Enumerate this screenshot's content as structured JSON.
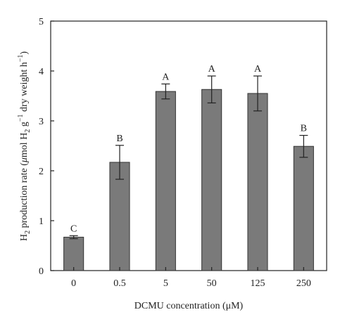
{
  "chart_data": {
    "type": "bar",
    "categories": [
      "0",
      "0.5",
      "5",
      "50",
      "125",
      "250"
    ],
    "values": [
      0.67,
      2.17,
      3.59,
      3.63,
      3.55,
      2.49
    ],
    "errors": [
      0.03,
      0.34,
      0.15,
      0.27,
      0.35,
      0.22
    ],
    "significance": [
      "C",
      "B",
      "A",
      "A",
      "A",
      "B"
    ],
    "ylim": [
      0,
      5
    ],
    "yticks": [
      "0",
      "1",
      "2",
      "3",
      "4",
      "5"
    ],
    "xlabel": "DCMU concentration (μM)",
    "ylabel": {
      "p1": "H",
      "p1_sub": "2",
      "p2": " production rate (",
      "mu": "μ",
      "p3": "mol H",
      "p3_sub": "2",
      "p4": " g",
      "p4_sup": "−1",
      "p5": " dry weight h",
      "p5_sup": "−1",
      "p6": ")"
    },
    "grid": false,
    "bar_color": "#7a7a7a"
  }
}
